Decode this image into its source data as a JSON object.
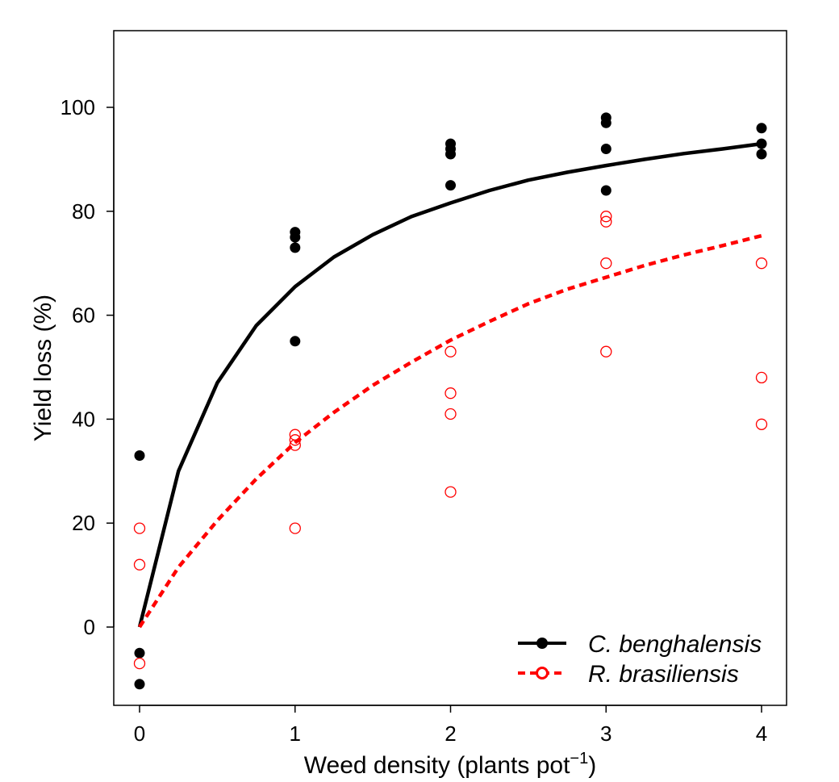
{
  "chart_data": {
    "type": "scatter",
    "xlabel": "Weed density (plants pot",
    "xlabel_superscript": "−1",
    "xlabel_suffix": ")",
    "ylabel": "Yield loss (%)",
    "xlim": [
      -0.17,
      4.17
    ],
    "ylim": [
      -15,
      115
    ],
    "x_ticks": [
      "0",
      "1",
      "2",
      "3",
      "4"
    ],
    "y_ticks": [
      "0",
      "20",
      "40",
      "60",
      "80",
      "100"
    ],
    "grid": false,
    "legend_position": "bottom-right",
    "series": [
      {
        "name": "C. benghalensis",
        "color": "#000000",
        "marker": "filled-circle",
        "line_style": "solid",
        "points": [
          [
            0,
            33
          ],
          [
            0,
            -5
          ],
          [
            0,
            -11
          ],
          [
            1,
            76
          ],
          [
            1,
            75
          ],
          [
            1,
            73
          ],
          [
            1,
            55
          ],
          [
            2,
            93
          ],
          [
            2,
            92
          ],
          [
            2,
            91
          ],
          [
            2,
            85
          ],
          [
            3,
            98
          ],
          [
            3,
            97
          ],
          [
            3,
            92
          ],
          [
            3,
            84
          ],
          [
            4,
            96
          ],
          [
            4,
            93
          ],
          [
            4,
            91
          ]
        ],
        "fit": {
          "x": [
            0,
            0.25,
            0.5,
            0.75,
            1,
            1.25,
            1.5,
            1.75,
            2,
            2.25,
            2.5,
            2.75,
            3,
            3.25,
            3.5,
            3.75,
            4
          ],
          "y": [
            0,
            30,
            47,
            58,
            65.5,
            71.2,
            75.5,
            79,
            81.6,
            84,
            86,
            87.5,
            88.8,
            90,
            91.1,
            92,
            93
          ]
        }
      },
      {
        "name": "R. brasiliensis",
        "color": "#ff0000",
        "marker": "open-circle",
        "line_style": "dashed",
        "points": [
          [
            0,
            19
          ],
          [
            0,
            12
          ],
          [
            0,
            -7
          ],
          [
            1,
            37
          ],
          [
            1,
            36
          ],
          [
            1,
            35
          ],
          [
            1,
            19
          ],
          [
            2,
            53
          ],
          [
            2,
            45
          ],
          [
            2,
            41
          ],
          [
            2,
            26
          ],
          [
            3,
            79
          ],
          [
            3,
            78
          ],
          [
            3,
            70
          ],
          [
            3,
            53
          ],
          [
            4,
            70
          ],
          [
            4,
            48
          ],
          [
            4,
            39
          ]
        ],
        "fit": {
          "x": [
            0,
            0.25,
            0.5,
            0.75,
            1,
            1.25,
            1.5,
            1.75,
            2,
            2.25,
            2.5,
            2.75,
            3,
            3.25,
            3.5,
            3.75,
            4
          ],
          "y": [
            0,
            11.5,
            20.5,
            28.5,
            35.5,
            41.3,
            46.5,
            51,
            55.2,
            58.8,
            62.2,
            65,
            67.3,
            69.6,
            71.6,
            73.4,
            75.3
          ]
        }
      }
    ]
  }
}
